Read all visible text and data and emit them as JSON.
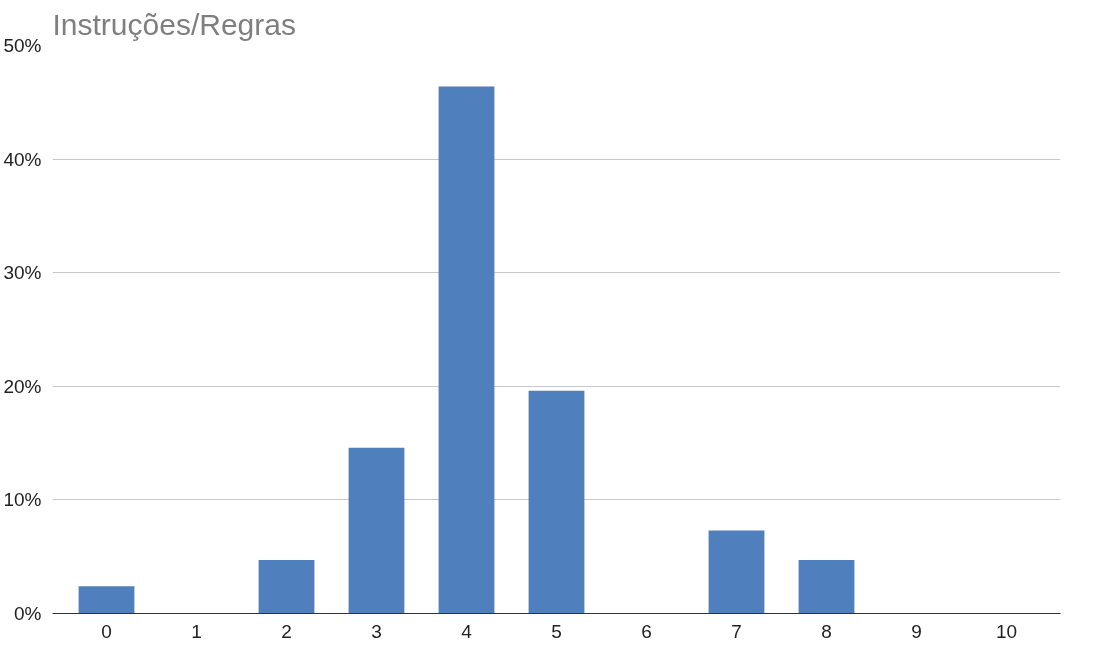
{
  "chart_data": {
    "type": "bar",
    "title": "Instruções/Regras",
    "categories": [
      "0",
      "1",
      "2",
      "3",
      "4",
      "5",
      "6",
      "7",
      "8",
      "9",
      "10"
    ],
    "values": [
      2.4,
      0,
      4.7,
      14.6,
      46.4,
      19.6,
      0,
      7.3,
      4.7,
      0,
      0
    ],
    "color": "#4f7fbd",
    "ylim": [
      0,
      50
    ],
    "yticks": [
      {
        "value": 0,
        "label": "0%"
      },
      {
        "value": 10,
        "label": "10%"
      },
      {
        "value": 20,
        "label": "20%"
      },
      {
        "value": 30,
        "label": "30%"
      },
      {
        "value": 40,
        "label": "40%"
      },
      {
        "value": 50,
        "label": "50%"
      }
    ],
    "grid": "y"
  }
}
